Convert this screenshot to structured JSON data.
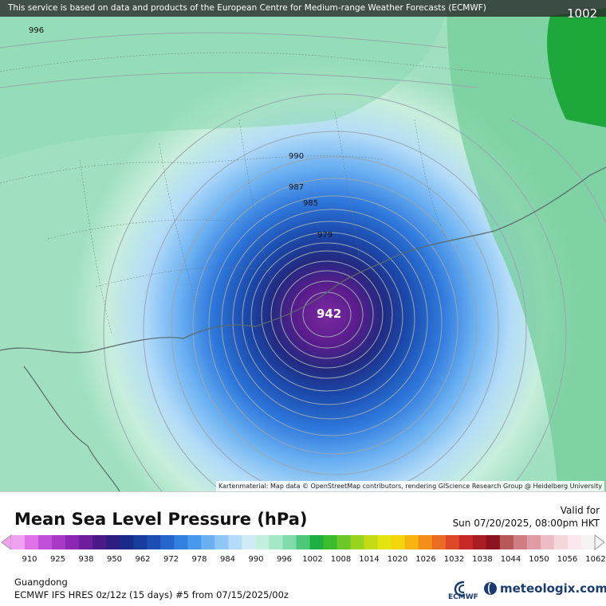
{
  "map": {
    "attribution": "This service is based on data and products of the European Centre for Medium-range Weather Forecasts (ECMWF)",
    "credit": "Kartenmaterial: Map data © OpenStreetMap contributors, rendering GIScience Research Group @ Heidelberg University",
    "isobar_labels": {
      "top_left": "996",
      "top_right": "1002",
      "l990": "990",
      "l987": "987",
      "l985": "985",
      "l979": "979",
      "center": "942"
    }
  },
  "legend": {
    "title": "Mean Sea Level Pressure (hPa)",
    "valid_label": "Valid for",
    "valid_time": "Sun 07/20/2025, 08:00pm HKT",
    "ticks": [
      "910",
      "925",
      "938",
      "950",
      "962",
      "972",
      "978",
      "984",
      "990",
      "996",
      "1002",
      "1008",
      "1014",
      "1020",
      "1026",
      "1032",
      "1038",
      "1044",
      "1050",
      "1056",
      "1062"
    ],
    "colors": [
      "#f2a0f0",
      "#e070e8",
      "#c050d8",
      "#a838c8",
      "#8c28b4",
      "#6c1e9c",
      "#4a1a88",
      "#2e1e80",
      "#1a2a88",
      "#183c9c",
      "#1e4eb4",
      "#2666cc",
      "#3280e0",
      "#4a98ec",
      "#6ab0f2",
      "#8ec6f6",
      "#b4dcf8",
      "#d2ecf6",
      "#c4f0e0",
      "#a4e8c8",
      "#80dca8",
      "#4cc878",
      "#1eb040",
      "#3cbc2c",
      "#6cc828",
      "#98d420",
      "#c4dc18",
      "#e4e410",
      "#f4d40c",
      "#f6b410",
      "#f2901a",
      "#ea6c22",
      "#de4828",
      "#c82828",
      "#a81c24",
      "#8c1420",
      "#b4585a",
      "#d07c80",
      "#e09ca4",
      "#ecbcc4",
      "#f4d8dc",
      "#fae8ec",
      "#f4f4f4"
    ],
    "region": "Guangdong",
    "model": "ECMWF IFS HRES 0z/12z (15 days) #5 from  07/15/2025/00z",
    "ecmwf_logo_text": "ECMWF",
    "brand": "meteologix.com"
  }
}
